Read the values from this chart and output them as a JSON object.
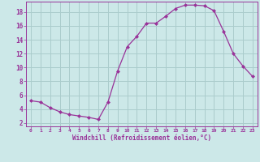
{
  "x": [
    0,
    1,
    2,
    3,
    4,
    5,
    6,
    7,
    8,
    9,
    10,
    11,
    12,
    13,
    14,
    15,
    16,
    17,
    18,
    19,
    20,
    21,
    22,
    23
  ],
  "y": [
    5.2,
    5.0,
    4.2,
    3.6,
    3.2,
    3.0,
    2.8,
    2.5,
    5.0,
    9.5,
    13.0,
    14.5,
    16.4,
    16.4,
    17.4,
    18.5,
    19.0,
    19.0,
    18.9,
    18.2,
    15.2,
    12.0,
    10.2,
    8.7
  ],
  "line_color": "#993399",
  "marker": "D",
  "marker_size": 2,
  "bg_color": "#cce8e8",
  "grid_color": "#aacccc",
  "xlabel": "Windchill (Refroidissement éolien,°C)",
  "xlabel_color": "#993399",
  "tick_color": "#993399",
  "xlim": [
    -0.5,
    23.5
  ],
  "ylim": [
    1.5,
    19.5
  ],
  "xticks": [
    0,
    1,
    2,
    3,
    4,
    5,
    6,
    7,
    8,
    9,
    10,
    11,
    12,
    13,
    14,
    15,
    16,
    17,
    18,
    19,
    20,
    21,
    22,
    23
  ],
  "yticks": [
    2,
    4,
    6,
    8,
    10,
    12,
    14,
    16,
    18
  ]
}
